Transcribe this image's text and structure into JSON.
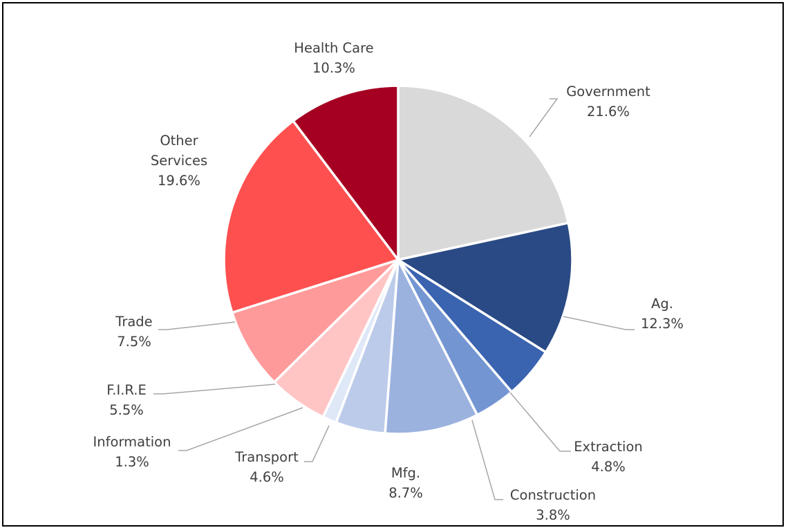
{
  "chart_data": {
    "type": "pie",
    "title": "",
    "start_angle_deg": 0,
    "direction": "clockwise",
    "slices": [
      {
        "label": "Government",
        "percent_text": "21.6%",
        "value": 21.6,
        "color": "#d9d9d9"
      },
      {
        "label": "Ag.",
        "percent_text": "12.3%",
        "value": 12.3,
        "color": "#2a4a85"
      },
      {
        "label": "Extraction",
        "percent_text": "4.8%",
        "value": 4.8,
        "color": "#3a63b0"
      },
      {
        "label": "Construction",
        "percent_text": "3.8%",
        "value": 3.8,
        "color": "#7396d2"
      },
      {
        "label": "Mfg.",
        "percent_text": "8.7%",
        "value": 8.7,
        "color": "#9bb2df"
      },
      {
        "label": "Transport",
        "percent_text": "4.6%",
        "value": 4.6,
        "color": "#bccbe9"
      },
      {
        "label": "Information",
        "percent_text": "1.3%",
        "value": 1.3,
        "color": "#dfe8f7"
      },
      {
        "label": "F.I.R.E",
        "percent_text": "5.5%",
        "value": 5.5,
        "color": "#ffc5c5"
      },
      {
        "label": "Trade",
        "percent_text": "7.5%",
        "value": 7.5,
        "color": "#ff9a9a"
      },
      {
        "label": "Other\nServices",
        "percent_text": "19.6%",
        "value": 19.6,
        "color": "#ff5050"
      },
      {
        "label": "Health Care",
        "percent_text": "10.3%",
        "value": 10.3,
        "color": "#a50021"
      }
    ],
    "legend": "none",
    "leader_line_color": "#a6a6a6"
  }
}
